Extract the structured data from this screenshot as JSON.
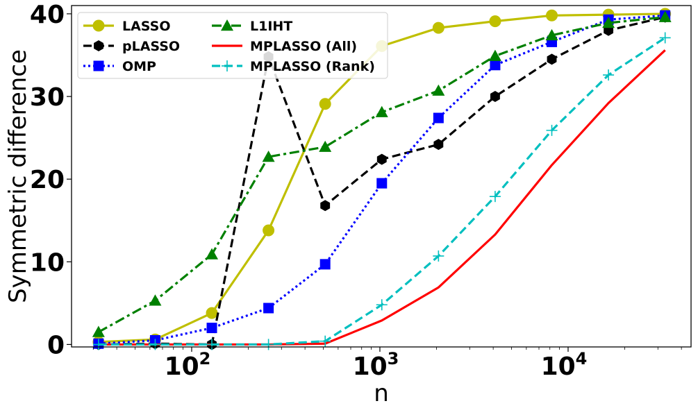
{
  "chart_data": {
    "type": "line",
    "xscale": "log",
    "xlabel": "n",
    "ylabel": "Symmetric difference",
    "xlim": [
      23,
      45000
    ],
    "ylim": [
      -0.3,
      41
    ],
    "x_ticks": [
      {
        "value": 100,
        "base": "10",
        "exp": "2"
      },
      {
        "value": 1000,
        "base": "10",
        "exp": "3"
      },
      {
        "value": 10000,
        "base": "10",
        "exp": "4"
      }
    ],
    "y_ticks": [
      0,
      10,
      20,
      30,
      40
    ],
    "legend": {
      "position": "top-left",
      "columns": 2
    },
    "x": [
      32,
      64,
      128,
      256,
      512,
      1024,
      2048,
      4096,
      8192,
      16384,
      32768
    ],
    "series": [
      {
        "name": "LASSO",
        "color": "#bfbf00",
        "dash": "solid",
        "marker": "circle",
        "values": [
          0.3,
          0.6,
          3.8,
          13.8,
          29.1,
          36.1,
          38.3,
          39.1,
          39.8,
          39.9,
          40.0
        ]
      },
      {
        "name": "pLASSO",
        "color": "#000000",
        "dash": "dashed",
        "marker": "hexagon",
        "values": [
          0.0,
          0.1,
          0.0,
          34.8,
          16.8,
          22.4,
          24.2,
          30.0,
          34.5,
          38.0,
          39.6
        ]
      },
      {
        "name": "OMP",
        "color": "#0000ff",
        "dash": "dotted",
        "marker": "square",
        "values": [
          0.1,
          0.5,
          2.0,
          4.4,
          9.7,
          19.5,
          27.4,
          33.8,
          36.6,
          39.3,
          39.8
        ]
      },
      {
        "name": "L1IHT",
        "color": "#008000",
        "dash": "dashdot",
        "marker": "triangle",
        "values": [
          1.5,
          5.3,
          10.9,
          22.7,
          23.9,
          28.1,
          30.7,
          34.9,
          37.4,
          38.9,
          39.6
        ]
      },
      {
        "name": "MPLASSO (All)",
        "color": "#ff0000",
        "dash": "solid",
        "marker": "none",
        "values": [
          0.0,
          0.0,
          0.0,
          0.0,
          0.1,
          2.9,
          6.9,
          13.3,
          21.7,
          29.2,
          35.6
        ]
      },
      {
        "name": "MPLASSO (Rank)",
        "color": "#00bfbf",
        "dash": "dashed",
        "marker": "plus",
        "values": [
          0.0,
          0.0,
          0.0,
          0.0,
          0.4,
          4.8,
          10.7,
          17.9,
          25.9,
          32.6,
          37.1
        ]
      }
    ]
  }
}
